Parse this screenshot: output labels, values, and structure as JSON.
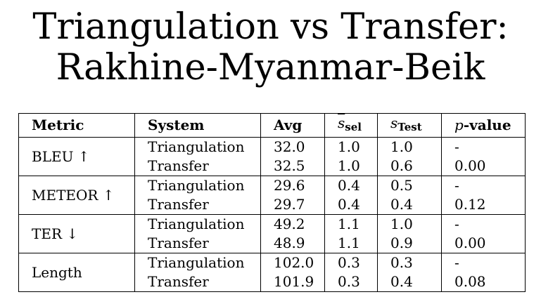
{
  "title": {
    "line1": "Triangulation vs Transfer:",
    "line2": "Rakhine-Myanmar-Beik"
  },
  "table": {
    "headers": {
      "metric": "Metric",
      "system": "System",
      "avg": "Avg",
      "s_sel_symbol": "s",
      "s_sel_sub": "sel",
      "s_test_symbol": "s",
      "s_test_sub": "Test",
      "p_symbol": "p",
      "p_rest": "-value"
    },
    "groups": [
      {
        "metric": "BLEU ↑",
        "rows": [
          {
            "system": "Triangulation",
            "avg": "32.0",
            "s_sel": "1.0",
            "s_test": "1.0",
            "p_value": "-"
          },
          {
            "system": "Transfer",
            "avg": "32.5",
            "s_sel": "1.0",
            "s_test": "0.6",
            "p_value": "0.00"
          }
        ]
      },
      {
        "metric": "METEOR ↑",
        "rows": [
          {
            "system": "Triangulation",
            "avg": "29.6",
            "s_sel": "0.4",
            "s_test": "0.5",
            "p_value": "-"
          },
          {
            "system": "Transfer",
            "avg": "29.7",
            "s_sel": "0.4",
            "s_test": "0.4",
            "p_value": "0.12"
          }
        ]
      },
      {
        "metric": "TER ↓",
        "rows": [
          {
            "system": "Triangulation",
            "avg": "49.2",
            "s_sel": "1.1",
            "s_test": "1.0",
            "p_value": "-"
          },
          {
            "system": "Transfer",
            "avg": "48.9",
            "s_sel": "1.1",
            "s_test": "0.9",
            "p_value": "0.00"
          }
        ]
      },
      {
        "metric": "Length",
        "rows": [
          {
            "system": "Triangulation",
            "avg": "102.0",
            "s_sel": "0.3",
            "s_test": "0.3",
            "p_value": "-"
          },
          {
            "system": "Transfer",
            "avg": "101.9",
            "s_sel": "0.3",
            "s_test": "0.4",
            "p_value": "0.08"
          }
        ]
      }
    ]
  }
}
